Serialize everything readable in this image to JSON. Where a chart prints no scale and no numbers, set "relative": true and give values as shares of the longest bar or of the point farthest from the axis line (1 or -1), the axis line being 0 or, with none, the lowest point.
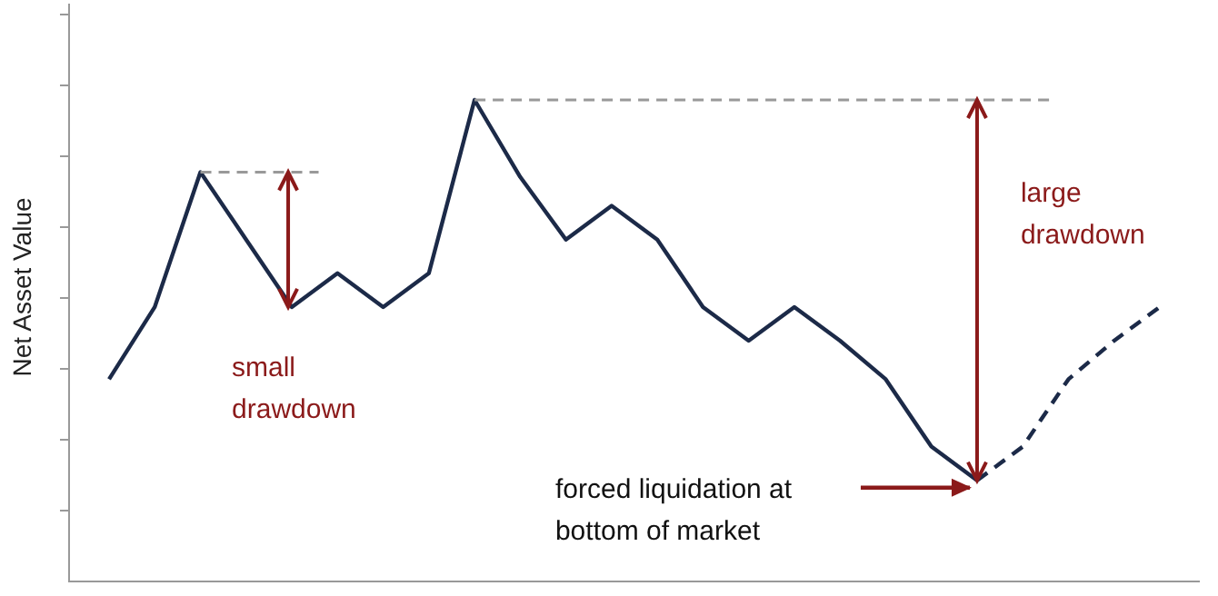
{
  "chart_data": {
    "type": "line",
    "relative": true,
    "ylabel": "Net Asset Value",
    "categories": [
      null,
      null,
      null,
      null,
      null,
      null,
      null,
      null,
      null,
      null,
      null,
      null,
      null,
      null,
      null,
      null,
      null,
      null,
      null,
      null,
      null,
      null,
      null,
      null
    ],
    "series": [
      {
        "color": "#1c2a48",
        "line_style": "solid",
        "values": [
          0.42,
          0.57,
          0.85,
          0.71,
          0.57,
          0.64,
          0.57,
          0.64,
          1,
          0.84,
          0.71,
          0.78,
          0.71,
          0.57,
          0.5,
          0.57,
          0.5,
          0.42,
          0.28,
          0.21,
          null,
          null,
          null,
          null
        ]
      },
      {
        "color": "#1c2a48",
        "line_style": "dashed",
        "values": [
          null,
          null,
          null,
          null,
          null,
          null,
          null,
          null,
          null,
          null,
          null,
          null,
          null,
          null,
          null,
          null,
          null,
          null,
          null,
          0.21,
          0.28,
          0.42,
          0.5,
          0.57
        ]
      }
    ],
    "annotations": [
      "small drawdown",
      "large drawdown",
      "forced liquidation at bottom of market"
    ],
    "legend": false,
    "marker": "none"
  }
}
